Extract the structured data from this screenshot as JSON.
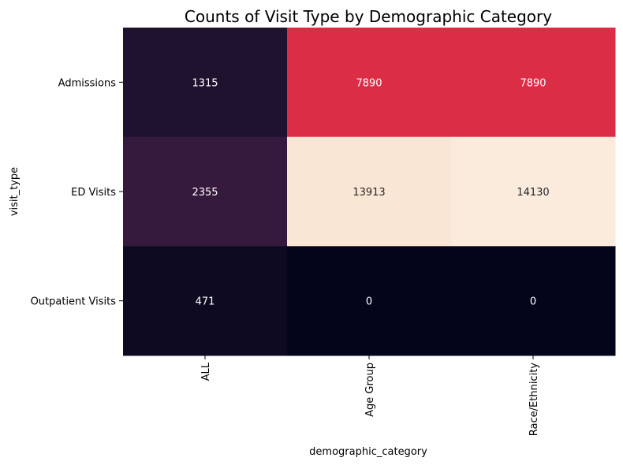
{
  "chart_data": {
    "type": "heatmap",
    "title": "Counts of Visit Type by Demographic Category",
    "xlabel": "demographic_category",
    "ylabel": "visit_type",
    "x_categories": [
      "ALL",
      "Age Group",
      "Race/Ethnicity"
    ],
    "y_categories": [
      "Admissions",
      "ED Visits",
      "Outpatient Visits"
    ],
    "values": [
      [
        1315,
        7890,
        7890
      ],
      [
        2355,
        13913,
        14130
      ],
      [
        471,
        0,
        0
      ]
    ],
    "value_range": [
      0,
      14130
    ],
    "colormap": "rocket",
    "annotations": true,
    "colorbar": false
  }
}
